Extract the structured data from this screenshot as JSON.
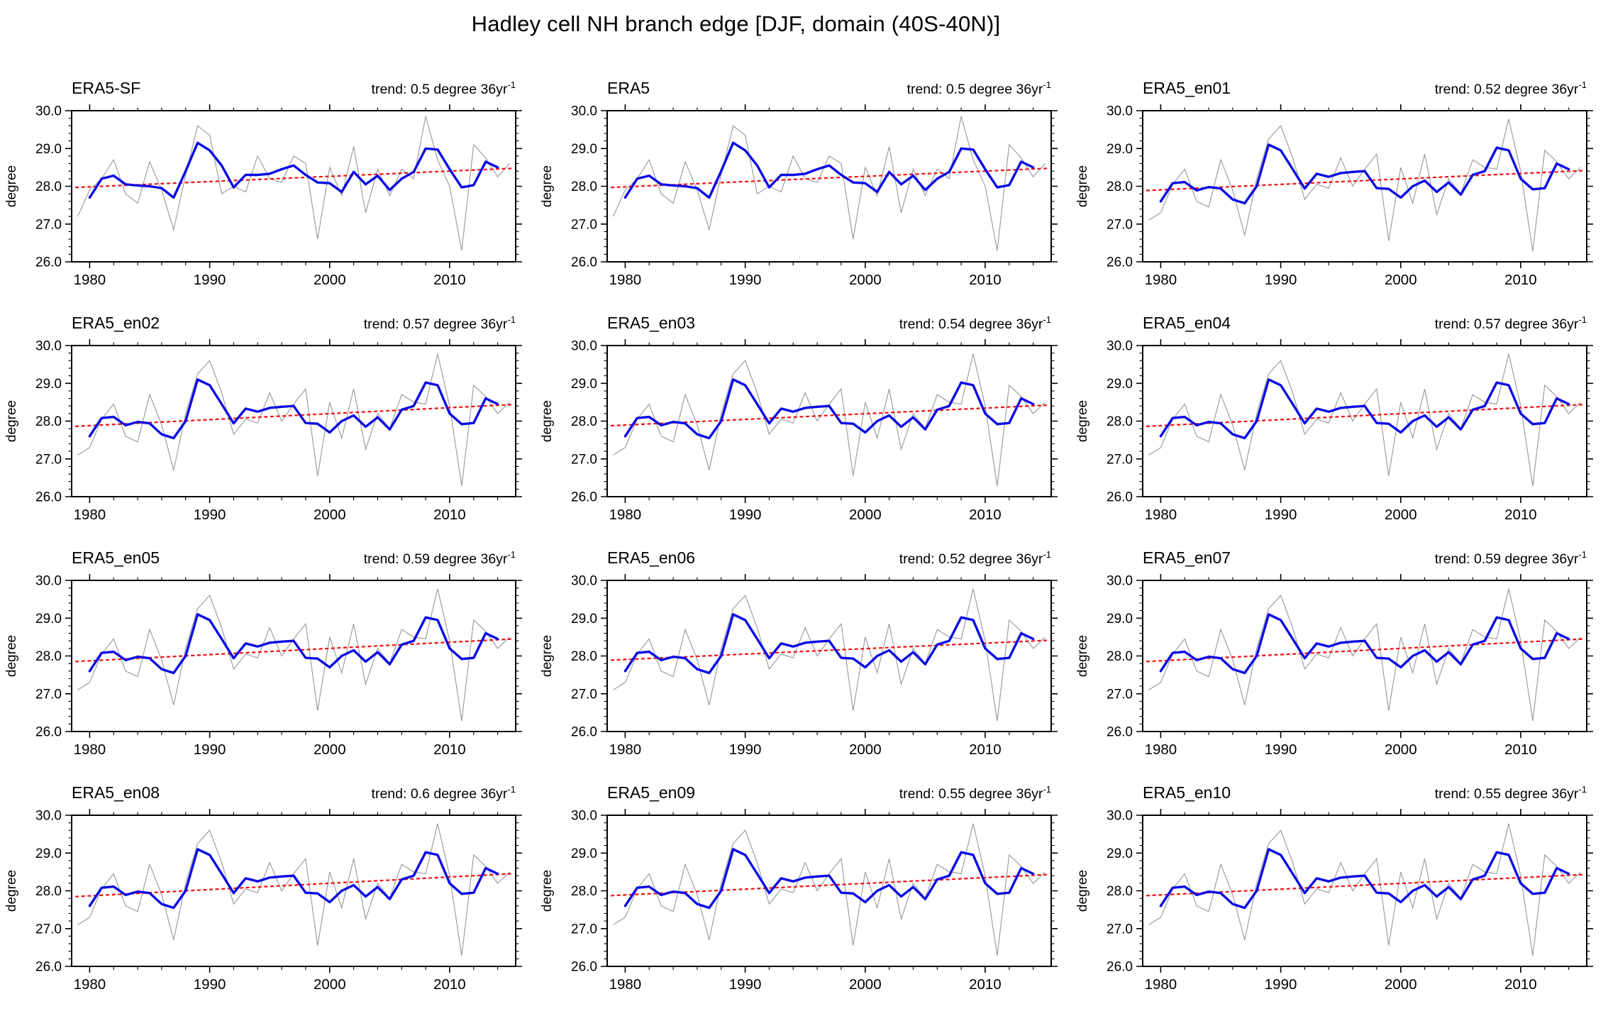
{
  "title": "Hadley cell NH branch edge [DJF, domain (40S-40N)]",
  "trend_superscript": "-1",
  "colors": {
    "annual_line": "#9e9e9e",
    "smoothed_line": "#0a0ae6",
    "trend_line": "#ee1111",
    "axis": "#000000"
  },
  "axis": {
    "ylabel": "degree",
    "y_ticks": [
      "30.0",
      "29.0",
      "28.0",
      "27.0",
      "26.0"
    ],
    "y_tick_values": [
      30,
      29,
      28,
      27,
      26
    ],
    "x_ticks": [
      "1980",
      "1990",
      "2000",
      "2010"
    ],
    "x_tick_years": [
      1980,
      1990,
      2000,
      2010
    ],
    "y_range": [
      26.0,
      30.0
    ],
    "x_range_years": [
      1979,
      2015
    ],
    "minor_x_step_years": 2,
    "minor_y_step": 0.2,
    "grid": "off"
  },
  "chart_data": {
    "type": "line",
    "years": [
      1979,
      1980,
      1981,
      1982,
      1983,
      1984,
      1985,
      1986,
      1987,
      1988,
      1989,
      1990,
      1991,
      1992,
      1993,
      1994,
      1995,
      1996,
      1997,
      1998,
      1999,
      2000,
      2001,
      2002,
      2003,
      2004,
      2005,
      2006,
      2007,
      2008,
      2009,
      2010,
      2011,
      2012,
      2013,
      2014,
      2015
    ],
    "series_library": {
      "reanalysis": {
        "trend_mid": 28.22,
        "smoothed_start_year": 1980,
        "annual": [
          27.2,
          27.9,
          28.2,
          28.7,
          27.8,
          27.55,
          28.65,
          27.9,
          26.85,
          28.3,
          29.6,
          29.35,
          27.8,
          28.0,
          27.85,
          28.8,
          28.2,
          28.1,
          28.8,
          28.6,
          26.6,
          28.5,
          27.75,
          29.05,
          27.3,
          28.45,
          27.75,
          28.45,
          28.2,
          29.85,
          28.7,
          28.0,
          26.3,
          29.1,
          28.75,
          28.25,
          28.6
        ],
        "smoothed": [
          27.7,
          28.2,
          28.28,
          28.05,
          28.02,
          28.0,
          27.95,
          27.7,
          28.4,
          29.15,
          28.95,
          28.55,
          27.97,
          28.3,
          28.3,
          28.33,
          28.45,
          28.55,
          28.3,
          28.1,
          28.08,
          27.85,
          28.38,
          28.05,
          28.28,
          27.9,
          28.2,
          28.38,
          29.0,
          28.97,
          28.45,
          27.97,
          28.03,
          28.65,
          28.5
        ]
      },
      "ensemble": {
        "trend_mid": 28.15,
        "smoothed_start_year": 1980,
        "annual": [
          27.1,
          27.3,
          28.05,
          28.45,
          27.6,
          27.45,
          28.7,
          27.9,
          26.7,
          28.2,
          29.25,
          29.6,
          28.75,
          27.65,
          28.05,
          27.95,
          28.75,
          28.0,
          28.45,
          28.85,
          26.55,
          28.5,
          27.55,
          28.85,
          27.25,
          28.2,
          27.8,
          28.7,
          28.5,
          28.45,
          29.78,
          28.4,
          26.28,
          28.95,
          28.65,
          28.2,
          28.5
        ],
        "smoothed": [
          27.6,
          28.08,
          28.11,
          27.89,
          27.98,
          27.94,
          27.65,
          27.55,
          28.0,
          29.1,
          28.95,
          28.45,
          27.94,
          28.33,
          28.25,
          28.35,
          28.38,
          28.4,
          27.95,
          27.93,
          27.7,
          28.0,
          28.15,
          27.85,
          28.1,
          27.78,
          28.3,
          28.4,
          29.02,
          28.95,
          28.2,
          27.92,
          27.95,
          28.6,
          28.45
        ]
      }
    },
    "panels": [
      {
        "label": "ERA5-SF",
        "trend_text": "trend: 0.5 degree 36yr",
        "trend_display": "0.5",
        "trend_value": 0.5,
        "series": "reanalysis"
      },
      {
        "label": "ERA5",
        "trend_text": "trend: 0.5 degree 36yr",
        "trend_display": "0.5",
        "trend_value": 0.5,
        "series": "reanalysis"
      },
      {
        "label": "ERA5_en01",
        "trend_text": "trend: 0.52 degree 36yr",
        "trend_display": "0.52",
        "trend_value": 0.52,
        "series": "ensemble"
      },
      {
        "label": "ERA5_en02",
        "trend_text": "trend: 0.57 degree 36yr",
        "trend_display": "0.57",
        "trend_value": 0.57,
        "series": "ensemble"
      },
      {
        "label": "ERA5_en03",
        "trend_text": "trend: 0.54 degree 36yr",
        "trend_display": "0.54",
        "trend_value": 0.54,
        "series": "ensemble"
      },
      {
        "label": "ERA5_en04",
        "trend_text": "trend: 0.57 degree 36yr",
        "trend_display": "0.57",
        "trend_value": 0.57,
        "series": "ensemble"
      },
      {
        "label": "ERA5_en05",
        "trend_text": "trend: 0.59 degree 36yr",
        "trend_display": "0.59",
        "trend_value": 0.59,
        "series": "ensemble"
      },
      {
        "label": "ERA5_en06",
        "trend_text": "trend: 0.52 degree 36yr",
        "trend_display": "0.52",
        "trend_value": 0.52,
        "series": "ensemble"
      },
      {
        "label": "ERA5_en07",
        "trend_text": "trend: 0.59 degree 36yr",
        "trend_display": "0.59",
        "trend_value": 0.59,
        "series": "ensemble"
      },
      {
        "label": "ERA5_en08",
        "trend_text": "trend: 0.6 degree 36yr",
        "trend_display": "0.6",
        "trend_value": 0.6,
        "series": "ensemble"
      },
      {
        "label": "ERA5_en09",
        "trend_text": "trend: 0.55 degree 36yr",
        "trend_display": "0.55",
        "trend_value": 0.55,
        "series": "ensemble"
      },
      {
        "label": "ERA5_en10",
        "trend_text": "trend: 0.55 degree 36yr",
        "trend_display": "0.55",
        "trend_value": 0.55,
        "series": "ensemble"
      }
    ]
  }
}
